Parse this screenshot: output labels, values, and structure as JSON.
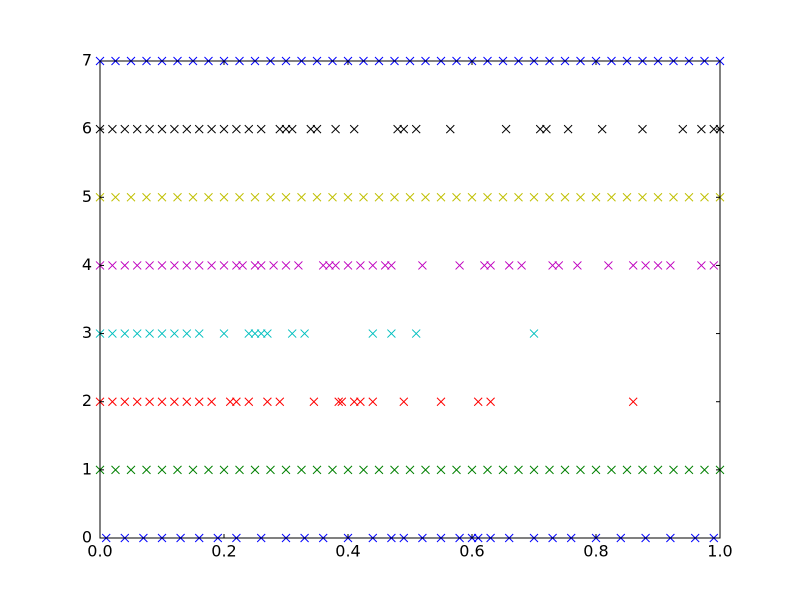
{
  "chart_data": {
    "type": "scatter",
    "xlim": [
      0,
      1
    ],
    "ylim": [
      0,
      7
    ],
    "xticks": [
      {
        "value": 0,
        "label": "0.0"
      },
      0.2,
      0.4,
      0.6,
      0.8,
      {
        "value": 1,
        "label": "1.0"
      }
    ],
    "yticks": [
      0,
      1,
      2,
      3,
      4,
      5,
      6,
      7
    ],
    "marker": "x",
    "series": [
      {
        "color": "#0000ff",
        "x": [
          0.01,
          0.04,
          0.07,
          0.1,
          0.13,
          0.16,
          0.19,
          0.22,
          0.26,
          0.3,
          0.33,
          0.36,
          0.4,
          0.44,
          0.47,
          0.49,
          0.52,
          0.55,
          0.58,
          0.6,
          0.61,
          0.63,
          0.66,
          0.7,
          0.73,
          0.76,
          0.8,
          0.84,
          0.88,
          0.92,
          0.96,
          0.99
        ],
        "values": [
          0,
          0,
          0,
          0,
          0,
          0,
          0,
          0,
          0,
          0,
          0,
          0,
          0,
          0,
          0,
          0,
          0,
          0,
          0,
          0,
          0,
          0,
          0,
          0,
          0,
          0,
          0,
          0,
          0,
          0,
          0,
          0
        ]
      },
      {
        "color": "#008000",
        "x": [
          0,
          0.025,
          0.05,
          0.075,
          0.1,
          0.125,
          0.15,
          0.175,
          0.2,
          0.225,
          0.25,
          0.275,
          0.3,
          0.325,
          0.35,
          0.375,
          0.4,
          0.425,
          0.45,
          0.475,
          0.5,
          0.525,
          0.55,
          0.575,
          0.6,
          0.625,
          0.65,
          0.675,
          0.7,
          0.725,
          0.75,
          0.775,
          0.8,
          0.825,
          0.85,
          0.875,
          0.9,
          0.925,
          0.95,
          0.975,
          1
        ],
        "values": [
          1,
          1,
          1,
          1,
          1,
          1,
          1,
          1,
          1,
          1,
          1,
          1,
          1,
          1,
          1,
          1,
          1,
          1,
          1,
          1,
          1,
          1,
          1,
          1,
          1,
          1,
          1,
          1,
          1,
          1,
          1,
          1,
          1,
          1,
          1,
          1,
          1,
          1,
          1,
          1,
          1
        ]
      },
      {
        "color": "#ff0000",
        "x": [
          0,
          0.02,
          0.04,
          0.06,
          0.08,
          0.1,
          0.12,
          0.14,
          0.16,
          0.18,
          0.21,
          0.22,
          0.24,
          0.27,
          0.29,
          0.345,
          0.385,
          0.39,
          0.41,
          0.42,
          0.44,
          0.49,
          0.55,
          0.61,
          0.63,
          0.86
        ],
        "values": [
          2,
          2,
          2,
          2,
          2,
          2,
          2,
          2,
          2,
          2,
          2,
          2,
          2,
          2,
          2,
          2,
          2,
          2,
          2,
          2,
          2,
          2,
          2,
          2,
          2,
          2
        ]
      },
      {
        "color": "#00bfbf",
        "x": [
          0,
          0.02,
          0.04,
          0.06,
          0.08,
          0.1,
          0.12,
          0.14,
          0.16,
          0.2,
          0.24,
          0.25,
          0.26,
          0.27,
          0.31,
          0.33,
          0.44,
          0.47,
          0.51,
          0.7
        ],
        "values": [
          3,
          3,
          3,
          3,
          3,
          3,
          3,
          3,
          3,
          3,
          3,
          3,
          3,
          3,
          3,
          3,
          3,
          3,
          3,
          3
        ]
      },
      {
        "color": "#bf00bf",
        "x": [
          0,
          0.02,
          0.04,
          0.06,
          0.08,
          0.1,
          0.12,
          0.14,
          0.16,
          0.18,
          0.2,
          0.22,
          0.23,
          0.25,
          0.26,
          0.28,
          0.3,
          0.32,
          0.36,
          0.37,
          0.38,
          0.4,
          0.42,
          0.44,
          0.46,
          0.47,
          0.52,
          0.58,
          0.62,
          0.63,
          0.66,
          0.68,
          0.73,
          0.74,
          0.77,
          0.82,
          0.86,
          0.88,
          0.9,
          0.92,
          0.97,
          0.99
        ],
        "values": [
          4,
          4,
          4,
          4,
          4,
          4,
          4,
          4,
          4,
          4,
          4,
          4,
          4,
          4,
          4,
          4,
          4,
          4,
          4,
          4,
          4,
          4,
          4,
          4,
          4,
          4,
          4,
          4,
          4,
          4,
          4,
          4,
          4,
          4,
          4,
          4,
          4,
          4,
          4,
          4,
          4,
          4
        ]
      },
      {
        "color": "#bfbf00",
        "x": [
          0,
          0.025,
          0.05,
          0.075,
          0.1,
          0.125,
          0.15,
          0.175,
          0.2,
          0.225,
          0.25,
          0.275,
          0.3,
          0.325,
          0.35,
          0.375,
          0.4,
          0.425,
          0.45,
          0.475,
          0.5,
          0.525,
          0.55,
          0.575,
          0.6,
          0.625,
          0.65,
          0.675,
          0.7,
          0.725,
          0.75,
          0.775,
          0.8,
          0.825,
          0.85,
          0.875,
          0.9,
          0.925,
          0.95,
          0.975,
          1
        ],
        "values": [
          5,
          5,
          5,
          5,
          5,
          5,
          5,
          5,
          5,
          5,
          5,
          5,
          5,
          5,
          5,
          5,
          5,
          5,
          5,
          5,
          5,
          5,
          5,
          5,
          5,
          5,
          5,
          5,
          5,
          5,
          5,
          5,
          5,
          5,
          5,
          5,
          5,
          5,
          5,
          5,
          5
        ]
      },
      {
        "color": "#000000",
        "x": [
          0,
          0.02,
          0.04,
          0.06,
          0.08,
          0.1,
          0.12,
          0.14,
          0.16,
          0.18,
          0.2,
          0.22,
          0.24,
          0.26,
          0.29,
          0.3,
          0.31,
          0.34,
          0.35,
          0.38,
          0.41,
          0.48,
          0.49,
          0.51,
          0.565,
          0.655,
          0.71,
          0.72,
          0.755,
          0.81,
          0.875,
          0.94,
          0.97,
          0.99,
          1
        ],
        "values": [
          6,
          6,
          6,
          6,
          6,
          6,
          6,
          6,
          6,
          6,
          6,
          6,
          6,
          6,
          6,
          6,
          6,
          6,
          6,
          6,
          6,
          6,
          6,
          6,
          6,
          6,
          6,
          6,
          6,
          6,
          6,
          6,
          6,
          6,
          6
        ]
      },
      {
        "color": "#0000ff",
        "x": [
          0,
          0.025,
          0.05,
          0.075,
          0.1,
          0.125,
          0.15,
          0.175,
          0.2,
          0.225,
          0.25,
          0.275,
          0.3,
          0.325,
          0.35,
          0.375,
          0.4,
          0.425,
          0.45,
          0.475,
          0.5,
          0.525,
          0.55,
          0.575,
          0.6,
          0.625,
          0.65,
          0.675,
          0.7,
          0.725,
          0.75,
          0.775,
          0.8,
          0.825,
          0.85,
          0.875,
          0.9,
          0.925,
          0.95,
          0.975,
          1
        ],
        "values": [
          7,
          7,
          7,
          7,
          7,
          7,
          7,
          7,
          7,
          7,
          7,
          7,
          7,
          7,
          7,
          7,
          7,
          7,
          7,
          7,
          7,
          7,
          7,
          7,
          7,
          7,
          7,
          7,
          7,
          7,
          7,
          7,
          7,
          7,
          7,
          7,
          7,
          7,
          7,
          7,
          7
        ]
      }
    ]
  }
}
